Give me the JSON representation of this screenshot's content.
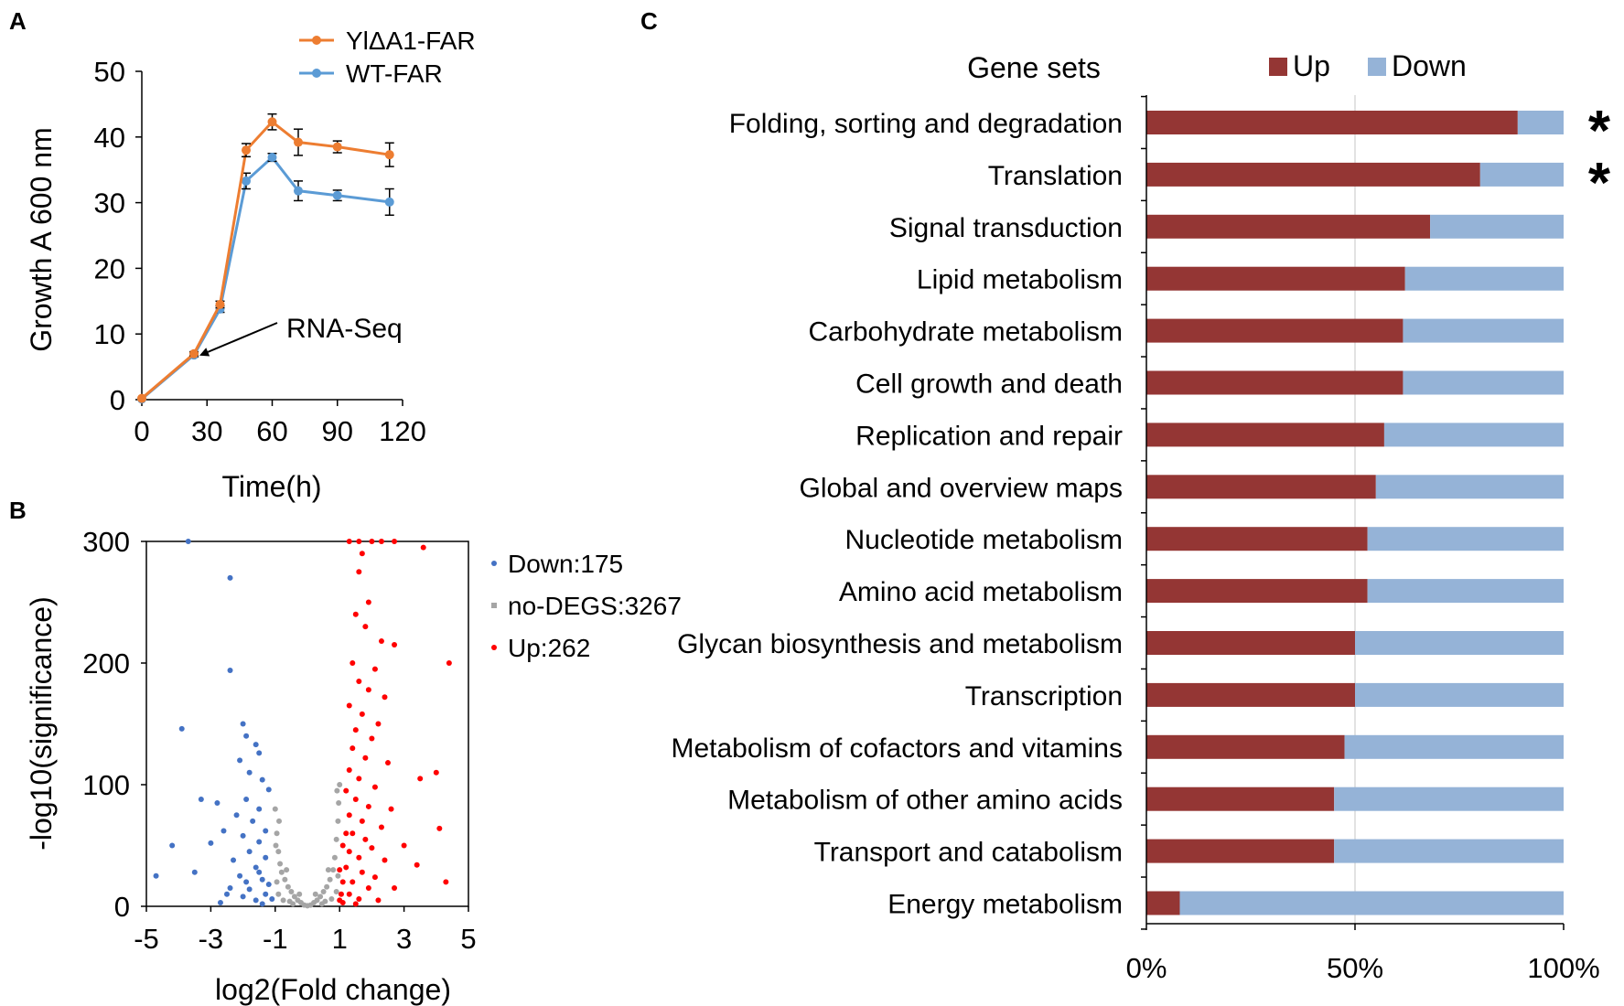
{
  "panels": {
    "a": "A",
    "b": "B",
    "c": "C"
  },
  "chart_data": [
    {
      "type": "line",
      "panel": "A",
      "xlabel": "Time(h)",
      "ylabel": "Growth A 600 nm",
      "xlim": [
        0,
        120
      ],
      "ylim": [
        0,
        50
      ],
      "xticks": [
        0,
        30,
        60,
        90,
        120
      ],
      "yticks": [
        0,
        10,
        20,
        30,
        40,
        50
      ],
      "annotation": "RNA-Seq",
      "annotation_target": {
        "x": 24,
        "y": 7
      },
      "legend_position": "top-center",
      "series": [
        {
          "name": "YlΔA1-FAR",
          "color": "#ED7D31",
          "x": [
            0,
            24,
            36,
            48,
            60,
            72,
            90,
            114
          ],
          "y": [
            0.2,
            7.0,
            14.5,
            38.0,
            42.3,
            39.2,
            38.5,
            37.3
          ],
          "err": [
            0,
            0.3,
            0.5,
            1.0,
            1.2,
            2.0,
            0.9,
            1.8
          ]
        },
        {
          "name": "WT-FAR",
          "color": "#5B9BD5",
          "x": [
            0,
            24,
            36,
            48,
            60,
            72,
            90,
            114
          ],
          "y": [
            0.1,
            6.8,
            13.8,
            33.3,
            36.9,
            31.8,
            31.1,
            30.1
          ],
          "err": [
            0,
            0.3,
            0.5,
            1.2,
            0.6,
            1.5,
            0.8,
            2.0
          ]
        }
      ]
    },
    {
      "type": "scatter",
      "panel": "B",
      "xlabel": "log2(Fold change)",
      "ylabel": "-log10(significance)",
      "xlim": [
        -5,
        5
      ],
      "ylim": [
        0,
        300
      ],
      "xticks": [
        -5,
        -3,
        -1,
        1,
        3,
        5
      ],
      "yticks": [
        0,
        100,
        200,
        300
      ],
      "legend_position": "right",
      "series": [
        {
          "name": "Down:175",
          "color": "#4472C4",
          "points": [
            [
              -3.7,
              300
            ],
            [
              -2.4,
              270
            ],
            [
              -2.4,
              194
            ],
            [
              -3.9,
              146
            ],
            [
              -2.0,
              150
            ],
            [
              -1.9,
              140
            ],
            [
              -1.6,
              133
            ],
            [
              -1.5,
              126
            ],
            [
              -2.1,
              120
            ],
            [
              -1.8,
              110
            ],
            [
              -1.4,
              104
            ],
            [
              -1.2,
              96
            ],
            [
              -3.3,
              88
            ],
            [
              -2.8,
              85
            ],
            [
              -1.9,
              88
            ],
            [
              -1.5,
              80
            ],
            [
              -2.2,
              75
            ],
            [
              -1.7,
              70
            ],
            [
              -1.3,
              62
            ],
            [
              -2.6,
              62
            ],
            [
              -4.2,
              50
            ],
            [
              -3.0,
              52
            ],
            [
              -2.0,
              58
            ],
            [
              -1.5,
              53
            ],
            [
              -1.8,
              45
            ],
            [
              -1.3,
              40
            ],
            [
              -2.3,
              38
            ],
            [
              -1.6,
              32
            ],
            [
              -4.7,
              25
            ],
            [
              -3.5,
              28
            ],
            [
              -2.1,
              25
            ],
            [
              -1.4,
              22
            ],
            [
              -2.4,
              15
            ],
            [
              -1.8,
              14
            ],
            [
              -1.3,
              10
            ],
            [
              -2.0,
              8
            ],
            [
              -1.6,
              5
            ],
            [
              -2.7,
              3
            ],
            [
              -1.2,
              18
            ],
            [
              -1.5,
              28
            ],
            [
              -1.9,
              20
            ],
            [
              -2.5,
              10
            ],
            [
              -1.1,
              6
            ],
            [
              -1.4,
              2
            ]
          ]
        },
        {
          "name": "no-DEGS:3267",
          "color": "#A5A5A5",
          "points": [
            [
              -1.0,
              80
            ],
            [
              -0.95,
              60
            ],
            [
              -0.9,
              45
            ],
            [
              -0.85,
              35
            ],
            [
              -0.8,
              28
            ],
            [
              -0.7,
              22
            ],
            [
              -0.6,
              16
            ],
            [
              -0.5,
              12
            ],
            [
              -0.4,
              8
            ],
            [
              -0.3,
              5
            ],
            [
              -0.2,
              3
            ],
            [
              -0.1,
              1
            ],
            [
              0.0,
              0.5
            ],
            [
              0.1,
              1
            ],
            [
              0.2,
              3
            ],
            [
              0.3,
              5
            ],
            [
              0.4,
              8
            ],
            [
              0.5,
              12
            ],
            [
              0.6,
              16
            ],
            [
              0.7,
              22
            ],
            [
              0.8,
              30
            ],
            [
              0.85,
              40
            ],
            [
              0.9,
              55
            ],
            [
              0.95,
              70
            ],
            [
              1.0,
              100
            ],
            [
              -0.95,
              20
            ],
            [
              -0.9,
              10
            ],
            [
              -0.75,
              5
            ],
            [
              -0.65,
              30
            ],
            [
              -0.55,
              4
            ],
            [
              0.55,
              4
            ],
            [
              0.65,
              30
            ],
            [
              0.75,
              6
            ],
            [
              0.9,
              12
            ],
            [
              0.95,
              25
            ],
            [
              -0.98,
              50
            ],
            [
              0.97,
              85
            ],
            [
              0.92,
              95
            ],
            [
              -0.88,
              70
            ],
            [
              0.45,
              2
            ],
            [
              -0.45,
              2
            ],
            [
              0.25,
              10
            ],
            [
              -0.25,
              10
            ]
          ]
        },
        {
          "name": "Up:262",
          "color": "#FF0000",
          "points": [
            [
              1.3,
              300
            ],
            [
              1.6,
              300
            ],
            [
              2.0,
              300
            ],
            [
              2.3,
              300
            ],
            [
              2.7,
              300
            ],
            [
              3.6,
              295
            ],
            [
              1.7,
              290
            ],
            [
              1.6,
              275
            ],
            [
              1.9,
              250
            ],
            [
              1.5,
              240
            ],
            [
              1.8,
              230
            ],
            [
              2.3,
              218
            ],
            [
              2.7,
              215
            ],
            [
              1.4,
              200
            ],
            [
              2.1,
              195
            ],
            [
              4.4,
              200
            ],
            [
              1.6,
              185
            ],
            [
              1.9,
              178
            ],
            [
              2.4,
              172
            ],
            [
              1.3,
              165
            ],
            [
              1.7,
              158
            ],
            [
              2.2,
              150
            ],
            [
              1.5,
              145
            ],
            [
              2.0,
              138
            ],
            [
              1.4,
              130
            ],
            [
              1.8,
              122
            ],
            [
              2.5,
              118
            ],
            [
              4.0,
              110
            ],
            [
              1.3,
              112
            ],
            [
              1.6,
              105
            ],
            [
              3.5,
              105
            ],
            [
              2.1,
              98
            ],
            [
              1.2,
              95
            ],
            [
              1.5,
              88
            ],
            [
              1.9,
              82
            ],
            [
              2.6,
              80
            ],
            [
              1.3,
              75
            ],
            [
              1.7,
              70
            ],
            [
              4.1,
              64
            ],
            [
              2.3,
              65
            ],
            [
              1.4,
              60
            ],
            [
              1.8,
              55
            ],
            [
              2.0,
              48
            ],
            [
              3.0,
              50
            ],
            [
              1.3,
              45
            ],
            [
              1.6,
              40
            ],
            [
              2.4,
              38
            ],
            [
              3.4,
              34
            ],
            [
              1.2,
              32
            ],
            [
              1.7,
              28
            ],
            [
              2.1,
              24
            ],
            [
              4.3,
              20
            ],
            [
              1.4,
              20
            ],
            [
              1.9,
              15
            ],
            [
              2.7,
              15
            ],
            [
              1.3,
              10
            ],
            [
              1.6,
              6
            ],
            [
              2.2,
              5
            ],
            [
              1.1,
              3
            ],
            [
              1.5,
              2
            ],
            [
              1.1,
              50
            ],
            [
              1.2,
              60
            ],
            [
              1.0,
              30
            ],
            [
              1.1,
              20
            ],
            [
              1.05,
              10
            ],
            [
              1.0,
              5
            ]
          ]
        }
      ]
    },
    {
      "type": "bar",
      "orientation": "horizontal",
      "stacked": "percent",
      "panel": "C",
      "ylabel": "Gene sets",
      "xticks": [
        "0%",
        "50%",
        "100%"
      ],
      "legend_position": "top",
      "categories": [
        "Folding, sorting and degradation",
        "Translation",
        "Signal transduction",
        "Lipid metabolism",
        "Carbohydrate metabolism",
        "Cell growth and death",
        "Replication and repair",
        "Global and overview maps",
        "Nucleotide metabolism",
        "Amino acid metabolism",
        "Glycan biosynthesis and metabolism",
        "Transcription",
        "Metabolism of cofactors and vitamins",
        "Metabolism of other amino acids",
        "Transport and catabolism",
        "Energy metabolism"
      ],
      "series": [
        {
          "name": "Up",
          "color": "#943634",
          "values": [
            89,
            80,
            68,
            62,
            61.5,
            61.5,
            57,
            55,
            53,
            53,
            50,
            50,
            47.5,
            45,
            45,
            8
          ]
        },
        {
          "name": "Down",
          "color": "#95B3D7",
          "values": [
            11,
            20,
            32,
            38,
            38.5,
            38.5,
            43,
            45,
            47,
            47,
            50,
            50,
            52.5,
            55,
            55,
            92
          ]
        }
      ],
      "significance": [
        "*",
        "*",
        "",
        "",
        "",
        "",
        "",
        "",
        "",
        "",
        "",
        "",
        "",
        "",
        "",
        ""
      ]
    }
  ]
}
